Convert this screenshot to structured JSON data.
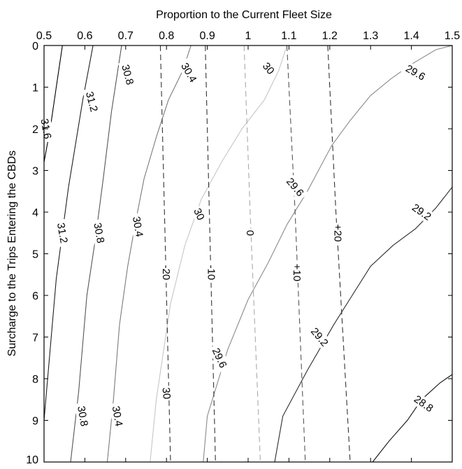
{
  "chart_data": {
    "type": "contour",
    "xlabel": "Proportion to the Current Fleet Size",
    "ylabel": "Surcharge to the Trips Entering the CBDs",
    "xlim": [
      0.5,
      1.5
    ],
    "ylim": [
      0,
      10
    ],
    "x_axis_position": "top",
    "y_axis_direction": "down",
    "grid": false,
    "legend": "none",
    "x_ticks": [
      "0.5",
      "0.6",
      "0.7",
      "0.8",
      "0.9",
      "1",
      "1.1",
      "1.2",
      "1.3",
      "1.4",
      "1.5"
    ],
    "y_ticks": [
      "0",
      "1",
      "2",
      "3",
      "4",
      "5",
      "6",
      "7",
      "8",
      "9",
      "10"
    ],
    "solid_contours": [
      {
        "level": "31.6",
        "color": "#000000",
        "points": [
          [
            0.5,
            2.8
          ],
          [
            0.515,
            2.0
          ],
          [
            0.53,
            1.0
          ],
          [
            0.545,
            0.0
          ]
        ]
      },
      {
        "level": "31.2",
        "color": "#1e1e1e",
        "points": [
          [
            0.5,
            9.0
          ],
          [
            0.53,
            5.6
          ],
          [
            0.56,
            3.4
          ],
          [
            0.595,
            1.3
          ],
          [
            0.62,
            0.0
          ]
        ]
      },
      {
        "level": "30.8",
        "color": "#555555",
        "points": [
          [
            0.565,
            10.0
          ],
          [
            0.585,
            8.3
          ],
          [
            0.605,
            6.0
          ],
          [
            0.625,
            4.7
          ],
          [
            0.645,
            3.2
          ],
          [
            0.665,
            1.6
          ],
          [
            0.69,
            0.0
          ]
        ]
      },
      {
        "level": "30.4",
        "color": "#7a7a7a",
        "points": [
          [
            0.655,
            10.0
          ],
          [
            0.67,
            8.5
          ],
          [
            0.685,
            6.7
          ],
          [
            0.705,
            5.3
          ],
          [
            0.725,
            4.2
          ],
          [
            0.745,
            3.2
          ],
          [
            0.775,
            2.2
          ],
          [
            0.805,
            1.3
          ],
          [
            0.84,
            0.6
          ],
          [
            0.86,
            0.0
          ]
        ]
      },
      {
        "level": "30",
        "color": "#c6c6c6",
        "points": [
          [
            0.76,
            10.0
          ],
          [
            0.775,
            8.5
          ],
          [
            0.81,
            6.2
          ],
          [
            0.845,
            4.8
          ],
          [
            0.885,
            3.7
          ],
          [
            0.935,
            2.8
          ],
          [
            0.985,
            2.0
          ],
          [
            1.04,
            1.3
          ],
          [
            1.075,
            0.6
          ],
          [
            1.095,
            0.0
          ]
        ]
      },
      {
        "level": "29.6",
        "color": "#8a8a8a",
        "points": [
          [
            0.89,
            10.0
          ],
          [
            0.9,
            8.9
          ],
          [
            0.95,
            7.3
          ],
          [
            1.0,
            6.1
          ],
          [
            1.05,
            5.2
          ],
          [
            1.095,
            4.3
          ],
          [
            1.145,
            3.5
          ],
          [
            1.205,
            2.4
          ],
          [
            1.25,
            1.8
          ],
          [
            1.3,
            1.2
          ],
          [
            1.35,
            0.8
          ],
          [
            1.4,
            0.45
          ],
          [
            1.46,
            0.1
          ],
          [
            1.5,
            0.0
          ]
        ]
      },
      {
        "level": "29.2",
        "color": "#2b2b2b",
        "points": [
          [
            1.065,
            10.0
          ],
          [
            1.085,
            8.9
          ],
          [
            1.145,
            7.8
          ],
          [
            1.21,
            6.7
          ],
          [
            1.255,
            6.0
          ],
          [
            1.3,
            5.3
          ],
          [
            1.355,
            4.8
          ],
          [
            1.41,
            4.4
          ],
          [
            1.46,
            3.9
          ],
          [
            1.5,
            3.4
          ]
        ]
      },
      {
        "level": "28.8",
        "color": "#111111",
        "points": [
          [
            1.305,
            10.0
          ],
          [
            1.345,
            9.5
          ],
          [
            1.39,
            9.0
          ],
          [
            1.425,
            8.5
          ],
          [
            1.47,
            8.1
          ],
          [
            1.5,
            7.9
          ]
        ]
      }
    ],
    "dashed_contours": [
      {
        "level": "-20",
        "color": "#333333",
        "points": [
          [
            0.785,
            0.0
          ],
          [
            0.795,
            4.0
          ],
          [
            0.81,
            10.0
          ]
        ]
      },
      {
        "level": "-10",
        "color": "#333333",
        "points": [
          [
            0.895,
            0.0
          ],
          [
            0.905,
            4.0
          ],
          [
            0.92,
            10.0
          ]
        ]
      },
      {
        "level": "0",
        "color": "#aaaaaa",
        "points": [
          [
            0.99,
            0.0
          ],
          [
            1.005,
            4.0
          ],
          [
            1.03,
            10.0
          ]
        ]
      },
      {
        "level": "+10",
        "color": "#555555",
        "points": [
          [
            1.095,
            0.0
          ],
          [
            1.115,
            4.0
          ],
          [
            1.14,
            10.0
          ]
        ]
      },
      {
        "level": "+20",
        "color": "#333333",
        "points": [
          [
            1.195,
            0.0
          ],
          [
            1.215,
            4.0
          ],
          [
            1.25,
            10.0
          ]
        ]
      }
    ],
    "contour_labels": [
      {
        "text": "31.6",
        "x": 0.505,
        "y": 2.0,
        "angle": 80
      },
      {
        "text": "31.2",
        "x": 0.617,
        "y": 1.35,
        "angle": 75
      },
      {
        "text": "30.8",
        "x": 0.705,
        "y": 0.7,
        "angle": 75
      },
      {
        "text": "30.4",
        "x": 0.855,
        "y": 0.65,
        "angle": 60
      },
      {
        "text": "30",
        "x": 1.05,
        "y": 0.55,
        "angle": 50
      },
      {
        "text": "29.6",
        "x": 1.41,
        "y": 0.65,
        "angle": 30
      },
      {
        "text": "31.2",
        "x": 0.545,
        "y": 4.5,
        "angle": 80
      },
      {
        "text": "30.8",
        "x": 0.635,
        "y": 4.5,
        "angle": 80
      },
      {
        "text": "30.4",
        "x": 0.73,
        "y": 4.35,
        "angle": 80
      },
      {
        "text": "30",
        "x": 0.88,
        "y": 4.05,
        "angle": 65
      },
      {
        "text": "29.6",
        "x": 1.115,
        "y": 3.4,
        "angle": 50
      },
      {
        "text": "29.2",
        "x": 1.425,
        "y": 4.0,
        "angle": 35
      },
      {
        "text": "29.6",
        "x": 0.93,
        "y": 7.5,
        "angle": 65
      },
      {
        "text": "29.2",
        "x": 1.175,
        "y": 7.0,
        "angle": 50
      },
      {
        "text": "28.8",
        "x": 1.43,
        "y": 8.6,
        "angle": 35
      },
      {
        "text": "30.8",
        "x": 0.595,
        "y": 8.9,
        "angle": 80
      },
      {
        "text": "30.4",
        "x": 0.68,
        "y": 8.9,
        "angle": 80
      },
      {
        "text": "30",
        "x": 0.8,
        "y": 8.35,
        "angle": 85
      },
      {
        "text": "-20",
        "x": 0.8,
        "y": 5.45,
        "angle": 90
      },
      {
        "text": "-10",
        "x": 0.91,
        "y": 5.45,
        "angle": 90
      },
      {
        "text": "0",
        "x": 1.005,
        "y": 4.5,
        "angle": 90
      },
      {
        "text": "+10",
        "x": 1.12,
        "y": 5.45,
        "angle": 90
      },
      {
        "text": "+20",
        "x": 1.22,
        "y": 4.5,
        "angle": 90
      }
    ]
  }
}
